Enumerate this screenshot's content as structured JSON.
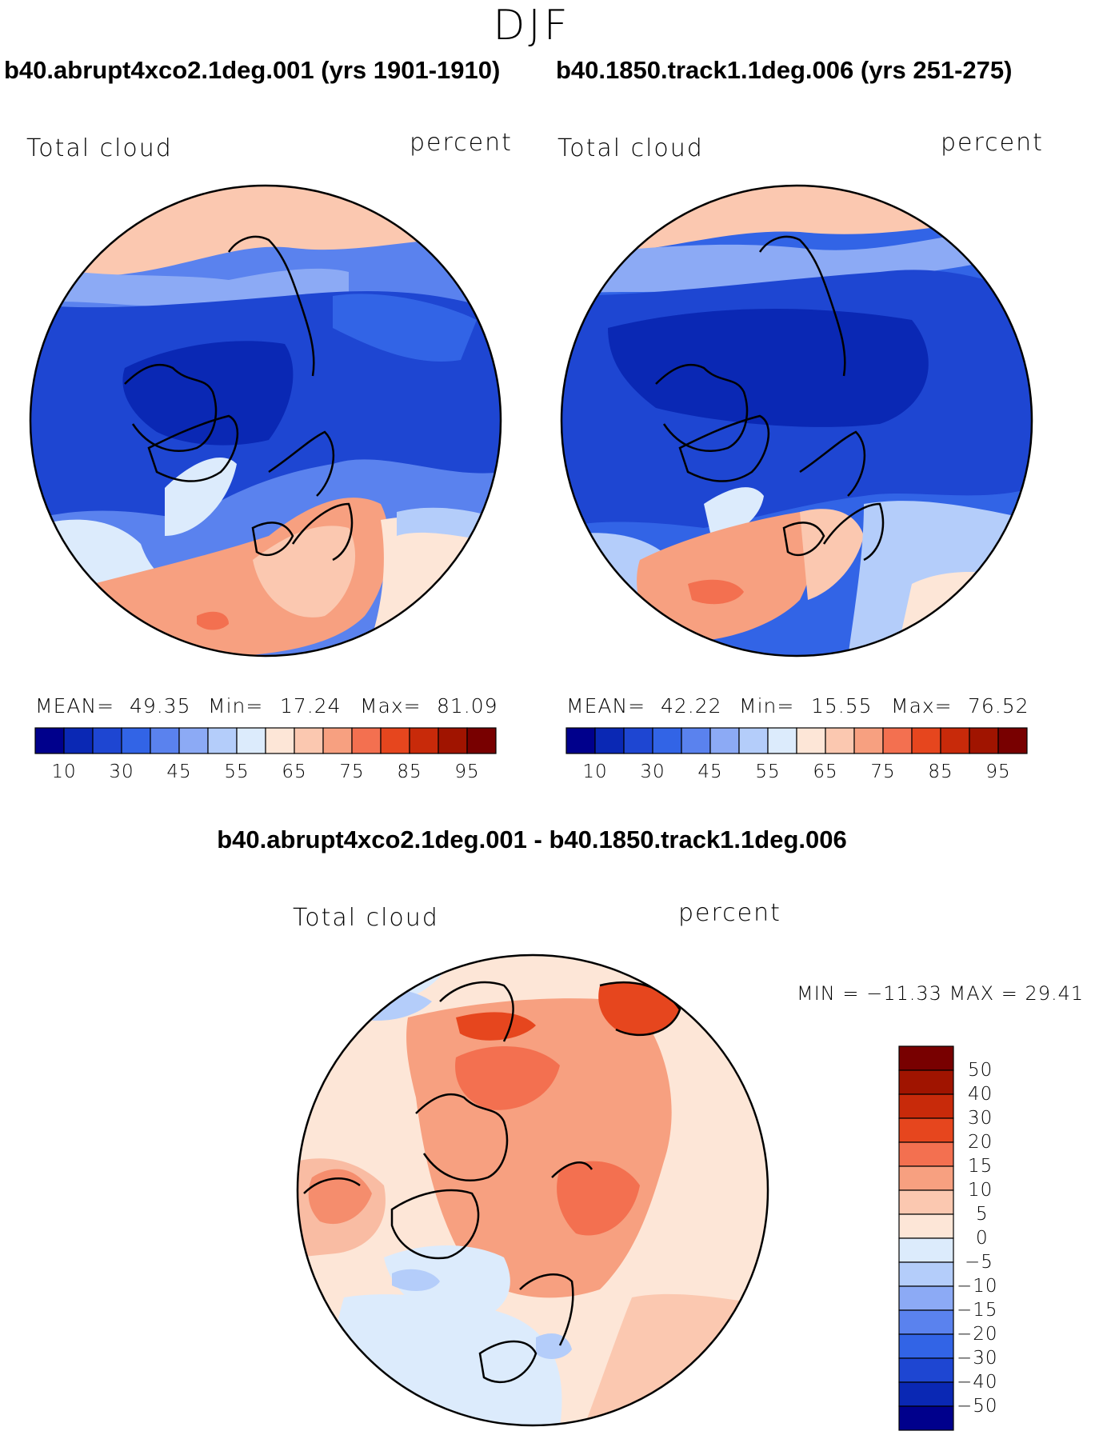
{
  "figure": {
    "season": "DJF",
    "field": "Total cloud",
    "units": "percent"
  },
  "panels": [
    {
      "title": "b40.abrupt4xco2.1deg.001 (yrs 1901-1910)",
      "stats": {
        "mean_label": "MEAN=",
        "mean": "49.35",
        "min_label": "Min=",
        "min": "17.24",
        "max_label": "Max=",
        "max": "81.09"
      },
      "colorbar_labels": [
        "10",
        "30",
        "45",
        "55",
        "65",
        "75",
        "85",
        "95"
      ]
    },
    {
      "title": "b40.1850.track1.1deg.006 (yrs 251-275)",
      "stats": {
        "mean_label": "MEAN=",
        "mean": "42.22",
        "min_label": "Min=",
        "min": "15.55",
        "max_label": "Max=",
        "max": "76.52"
      },
      "colorbar_labels": [
        "10",
        "30",
        "45",
        "55",
        "65",
        "75",
        "85",
        "95"
      ]
    }
  ],
  "difference": {
    "title": "b40.abrupt4xco2.1deg.001 - b40.1850.track1.1deg.006",
    "minmax": "MIN = −11.33 MAX =   29.41",
    "colorbar_labels": [
      "50",
      "40",
      "30",
      "20",
      "15",
      "10",
      "5",
      "0",
      "−5",
      "−10",
      "−15",
      "−20",
      "−30",
      "−40",
      "−50"
    ]
  },
  "chart_data": [
    {
      "type": "heatmap",
      "projection": "north polar stereographic",
      "title": "b40.abrupt4xco2.1deg.001 (yrs 1901-1910)",
      "variable": "Total cloud",
      "units": "percent",
      "mean": 49.35,
      "min": 17.24,
      "max": 81.09,
      "levels": [
        10,
        20,
        30,
        40,
        45,
        50,
        55,
        60,
        65,
        70,
        75,
        80,
        85,
        90,
        95
      ],
      "colors": [
        "#00008c",
        "#0a28b4",
        "#1e46d2",
        "#3264e6",
        "#5a82ee",
        "#8caaf5",
        "#b4cdfa",
        "#dcebfc",
        "#fde6d7",
        "#fbc8b0",
        "#f7a080",
        "#f37050",
        "#e6461e",
        "#c82a0a",
        "#a01400",
        "#780000"
      ]
    },
    {
      "type": "heatmap",
      "projection": "north polar stereographic",
      "title": "b40.1850.track1.1deg.006 (yrs 251-275)",
      "variable": "Total cloud",
      "units": "percent",
      "mean": 42.22,
      "min": 15.55,
      "max": 76.52,
      "levels": [
        10,
        20,
        30,
        40,
        45,
        50,
        55,
        60,
        65,
        70,
        75,
        80,
        85,
        90,
        95
      ],
      "colors": [
        "#00008c",
        "#0a28b4",
        "#1e46d2",
        "#3264e6",
        "#5a82ee",
        "#8caaf5",
        "#b4cdfa",
        "#dcebfc",
        "#fde6d7",
        "#fbc8b0",
        "#f7a080",
        "#f37050",
        "#e6461e",
        "#c82a0a",
        "#a01400",
        "#780000"
      ]
    },
    {
      "type": "heatmap",
      "projection": "north polar stereographic",
      "title": "b40.abrupt4xco2.1deg.001 - b40.1850.track1.1deg.006",
      "variable": "Total cloud",
      "units": "percent",
      "min": -11.33,
      "max": 29.41,
      "levels": [
        -50,
        -40,
        -30,
        -20,
        -15,
        -10,
        -5,
        0,
        5,
        10,
        15,
        20,
        30,
        40,
        50
      ],
      "colors": [
        "#00008c",
        "#0a28b4",
        "#1e46d2",
        "#3264e6",
        "#5a82ee",
        "#8caaf5",
        "#b4cdfa",
        "#dcebfc",
        "#fde6d7",
        "#fbc8b0",
        "#f7a080",
        "#f37050",
        "#e6461e",
        "#c82a0a",
        "#a01400",
        "#780000"
      ]
    }
  ]
}
